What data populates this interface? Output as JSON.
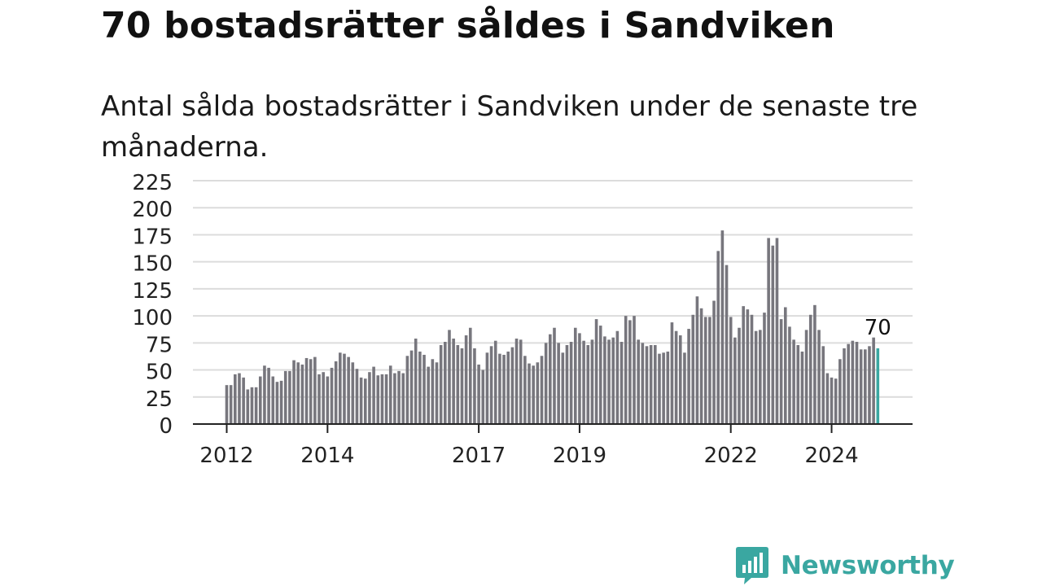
{
  "title": "70 bostadsrätter såldes i Sandviken",
  "subtitle": "Antal sålda bostadsrätter i Sandviken under de senaste tre månaderna.",
  "brand": {
    "name": "Newsworthy",
    "color": "#3aa7a1"
  },
  "colors": {
    "bar": "#77767d",
    "highlight": "#3aa7a1",
    "grid": "#dcdcdc",
    "axis": "#222222"
  },
  "chart_data": {
    "type": "bar",
    "y_ticks": [
      "0",
      "25",
      "50",
      "75",
      "100",
      "125",
      "150",
      "175",
      "200",
      "225"
    ],
    "ylim": [
      0,
      225
    ],
    "x_ticks": [
      {
        "label": "2012",
        "month_index": 0
      },
      {
        "label": "2014",
        "month_index": 24
      },
      {
        "label": "2017",
        "month_index": 60
      },
      {
        "label": "2019",
        "month_index": 84
      },
      {
        "label": "2022",
        "month_index": 120
      },
      {
        "label": "2024",
        "month_index": 144
      }
    ],
    "start_month": "2012-01",
    "values": [
      36,
      36,
      46,
      47,
      43,
      32,
      34,
      34,
      44,
      54,
      52,
      44,
      39,
      40,
      49,
      49,
      59,
      57,
      55,
      61,
      60,
      62,
      46,
      48,
      44,
      52,
      58,
      66,
      65,
      62,
      57,
      51,
      43,
      42,
      48,
      53,
      45,
      46,
      46,
      54,
      47,
      49,
      47,
      63,
      68,
      79,
      67,
      64,
      53,
      60,
      57,
      73,
      76,
      87,
      79,
      73,
      70,
      82,
      89,
      70,
      55,
      50,
      66,
      72,
      77,
      65,
      64,
      67,
      71,
      79,
      78,
      63,
      56,
      54,
      57,
      63,
      75,
      83,
      89,
      75,
      66,
      73,
      76,
      89,
      84,
      77,
      73,
      78,
      97,
      91,
      81,
      78,
      80,
      86,
      76,
      100,
      96,
      100,
      78,
      75,
      72,
      73,
      73,
      65,
      66,
      67,
      94,
      86,
      82,
      66,
      88,
      101,
      118,
      107,
      99,
      99,
      114,
      160,
      179,
      147,
      99,
      80,
      89,
      109,
      106,
      101,
      86,
      87,
      103,
      172,
      165,
      172,
      97,
      108,
      90,
      78,
      73,
      67,
      87,
      101,
      110,
      87,
      72,
      47,
      43,
      42,
      60,
      70,
      74,
      77,
      76,
      69,
      69,
      72,
      80,
      70
    ],
    "highlight_index": 155,
    "highlight_label": "70"
  }
}
